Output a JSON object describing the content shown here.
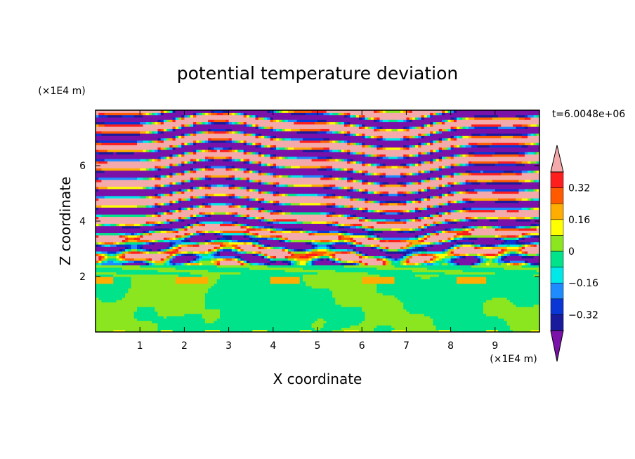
{
  "chart_data": {
    "type": "heatmap",
    "title": "potential temperature deviation",
    "xlabel": "X coordinate",
    "ylabel": "Z coordinate",
    "x_unit": "(×1E4 m)",
    "y_unit": "(×1E4 m)",
    "time_label": "t=6.0048e+06",
    "xlim": [
      0,
      10
    ],
    "ylim": [
      0,
      8
    ],
    "x_ticks": [
      1,
      2,
      3,
      4,
      5,
      6,
      7,
      8,
      9
    ],
    "y_ticks": [
      2,
      4,
      6
    ],
    "colorbar": {
      "levels": [
        -0.4,
        -0.32,
        -0.24,
        -0.16,
        -0.08,
        0,
        0.08,
        0.16,
        0.24,
        0.32,
        0.4
      ],
      "tick_labels": [
        "0.32",
        "0.16",
        "0",
        "−0.16",
        "−0.32"
      ],
      "tick_values": [
        0.32,
        0.16,
        0,
        -0.16,
        -0.32
      ],
      "colors_low_to_high": [
        "#1a1a9c",
        "#0a36d6",
        "#1e8cff",
        "#00e8e8",
        "#00e38a",
        "#8be620",
        "#ffff00",
        "#ffad00",
        "#ff5a00",
        "#ff1e1e"
      ],
      "under_color": "#7a12aa",
      "over_color": "#f4aaaa",
      "extend": "both"
    },
    "description_layers": [
      {
        "z_range": [
          0,
          2
        ],
        "dominant_values": [
          0.0,
          0.08
        ]
      },
      {
        "z_range": [
          2,
          4.5
        ],
        "dominant_values": [
          -0.4,
          -0.16,
          0.0,
          0.32,
          0.4
        ]
      },
      {
        "z_range": [
          4.5,
          8
        ],
        "dominant_values": [
          -0.4,
          0.4
        ]
      }
    ],
    "grid": false
  }
}
